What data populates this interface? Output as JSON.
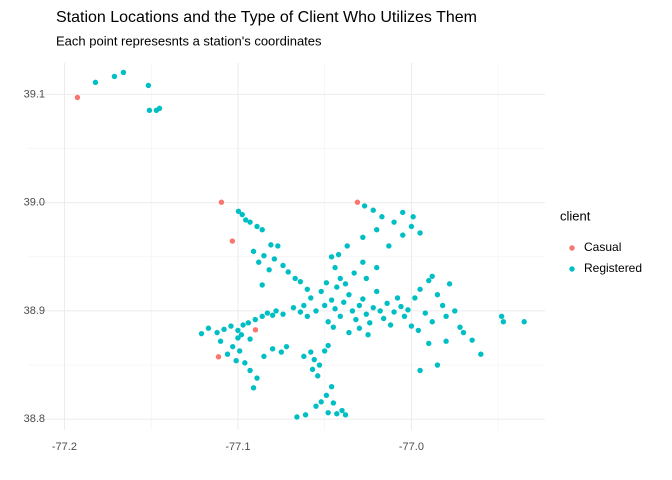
{
  "chart_data": {
    "type": "scatter",
    "title": "Station Locations and the Type of Client Who Utilizes Them",
    "subtitle": "Each point represesnts a station's coordinates",
    "legend_title": "client",
    "legend_position": "right",
    "xlim": [
      -77.221,
      -76.923
    ],
    "ylim": [
      38.79,
      39.129
    ],
    "xticks": [
      {
        "value": -77.2,
        "label": "-77.2"
      },
      {
        "value": -77.1,
        "label": "-77.1"
      },
      {
        "value": -77.0,
        "label": "-77.0"
      }
    ],
    "yticks": [
      {
        "value": 38.8,
        "label": "38.8"
      },
      {
        "value": 38.9,
        "label": "38.9"
      },
      {
        "value": 39.0,
        "label": "39.0"
      },
      {
        "value": 39.1,
        "label": "39.1"
      }
    ],
    "minor_xticks": [
      -77.15,
      -77.05,
      -76.95
    ],
    "minor_yticks": [
      38.85,
      38.95,
      39.05
    ],
    "grid": true,
    "series": [
      {
        "name": "Casual",
        "color": "#F8766D",
        "x": [
          -77.1925,
          -77.1095,
          -77.1032,
          -77.0311,
          -77.1112,
          -77.0899
        ],
        "values": [
          39.0972,
          39.0004,
          38.9645,
          39.0004,
          38.8576,
          38.8825
        ]
      },
      {
        "name": "Registered",
        "color": "#00BFC4",
        "x": [
          -77.1821,
          -77.1712,
          -77.166,
          -77.1516,
          -77.151,
          -77.147,
          -77.1452,
          -77.0997,
          -77.0975,
          -77.0955,
          -77.093,
          -77.089,
          -77.086,
          -77.081,
          -77.077,
          -77.085,
          -77.079,
          -77.074,
          -77.071,
          -77.067,
          -77.064,
          -77.06,
          -77.058,
          -77.062,
          -77.091,
          -77.088,
          -77.082,
          -77.086,
          -77.121,
          -77.117,
          -77.112,
          -77.108,
          -77.104,
          -77.1,
          -77.097,
          -77.094,
          -77.09,
          -77.086,
          -77.083,
          -77.078,
          -77.074,
          -77.098,
          -77.093,
          -77.11,
          -77.103,
          -77.099,
          -77.106,
          -77.101,
          -77.096,
          -77.093,
          -77.085,
          -77.08,
          -77.075,
          -77.072,
          -77.089,
          -77.091,
          -77.08,
          -77.1,
          -77.062,
          -77.058,
          -77.056,
          -77.053,
          -77.057,
          -77.054,
          -77.05,
          -77.048,
          -77.046,
          -77.049,
          -77.052,
          -77.055,
          -77.045,
          -77.04,
          -77.043,
          -77.038,
          -77.048,
          -77.061,
          -77.066,
          -77.027,
          -77.022,
          -77.017,
          -77.005,
          -76.999,
          -77.01,
          -77.02,
          -77.028,
          -77.037,
          -77.042,
          -77.013,
          -77.005,
          -76.995,
          -77.0,
          -77.05,
          -77.046,
          -77.044,
          -77.041,
          -77.039,
          -77.036,
          -77.034,
          -77.032,
          -77.03,
          -77.028,
          -77.026,
          -77.024,
          -77.022,
          -77.02,
          -77.018,
          -77.016,
          -77.014,
          -77.012,
          -77.01,
          -77.008,
          -77.006,
          -77.004,
          -77.002,
          -77.0,
          -77.043,
          -77.041,
          -77.044,
          -77.046,
          -77.049,
          -77.038,
          -77.052,
          -77.055,
          -77.06,
          -77.064,
          -77.068,
          -77.048,
          -77.045,
          -77.036,
          -77.03,
          -77.025,
          -77.033,
          -77.026,
          -77.02,
          -77.028,
          -76.995,
          -76.99,
          -76.988,
          -76.985,
          -76.982,
          -76.978,
          -76.992,
          -76.988,
          -76.996,
          -76.98,
          -76.975,
          -76.972,
          -76.99,
          -76.995,
          -76.985,
          -76.98,
          -76.97,
          -76.965,
          -76.96,
          -76.948,
          -76.947,
          -76.935,
          -76.998
        ],
        "values": [
          39.1111,
          39.1166,
          39.1203,
          39.1083,
          39.0853,
          39.0853,
          39.0871,
          38.992,
          38.989,
          38.984,
          38.982,
          38.978,
          38.975,
          38.961,
          38.96,
          38.951,
          38.948,
          38.942,
          38.936,
          38.93,
          38.927,
          38.92,
          38.912,
          38.905,
          38.955,
          38.945,
          38.938,
          38.924,
          38.879,
          38.884,
          38.88,
          38.883,
          38.886,
          38.882,
          38.887,
          38.889,
          38.892,
          38.895,
          38.898,
          38.9,
          38.897,
          38.878,
          38.874,
          38.872,
          38.867,
          38.863,
          38.86,
          38.854,
          38.852,
          38.845,
          38.858,
          38.865,
          38.862,
          38.867,
          38.838,
          38.829,
          38.896,
          38.875,
          38.858,
          38.862,
          38.855,
          38.85,
          38.846,
          38.84,
          38.863,
          38.868,
          38.83,
          38.822,
          38.816,
          38.812,
          38.815,
          38.808,
          38.805,
          38.804,
          38.806,
          38.804,
          38.802,
          38.997,
          38.993,
          38.987,
          38.991,
          38.987,
          38.982,
          38.975,
          38.968,
          38.96,
          38.952,
          38.96,
          38.97,
          38.972,
          38.978,
          38.905,
          38.91,
          38.902,
          38.895,
          38.908,
          38.915,
          38.9,
          38.892,
          38.905,
          38.911,
          38.897,
          38.889,
          38.903,
          38.918,
          38.9,
          38.893,
          38.907,
          38.887,
          38.899,
          38.912,
          38.904,
          38.895,
          38.901,
          38.886,
          38.922,
          38.93,
          38.94,
          38.95,
          38.926,
          38.925,
          38.918,
          38.9,
          38.895,
          38.899,
          38.903,
          38.89,
          38.885,
          38.88,
          38.884,
          38.878,
          38.935,
          38.93,
          38.94,
          38.945,
          38.92,
          38.928,
          38.932,
          38.915,
          38.905,
          38.925,
          38.898,
          38.89,
          38.882,
          38.895,
          38.9,
          38.885,
          38.87,
          38.845,
          38.85,
          38.872,
          38.88,
          38.873,
          38.86,
          38.895,
          38.89,
          38.89,
          38.912
        ]
      }
    ]
  }
}
